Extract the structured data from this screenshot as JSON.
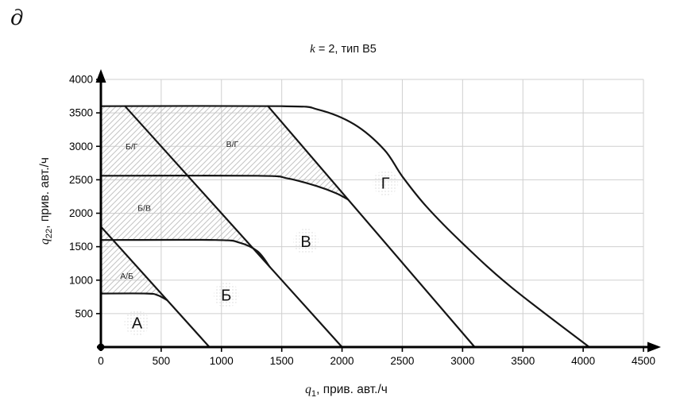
{
  "figure_label": "д",
  "title": {
    "var_italic": "k",
    "suffix": " = 2, тип В5"
  },
  "x_axis_title": {
    "var_italic": "q",
    "sub": "1",
    "suffix": ", прив. авт./ч"
  },
  "y_axis_title": {
    "var_italic": "q",
    "sub": "22",
    "suffix": ", прив. авт./ч"
  },
  "chart_data": {
    "type": "line",
    "title": "k = 2, тип В5",
    "xlabel": "q1, прив. авт./ч",
    "ylabel": "q22, прив. авт./ч",
    "xlim": [
      0,
      4500
    ],
    "ylim": [
      0,
      4000
    ],
    "x_ticks": [
      0,
      500,
      1000,
      1500,
      2000,
      2500,
      3000,
      3500,
      4000,
      4500
    ],
    "y_ticks": [
      500,
      1000,
      1500,
      2000,
      2500,
      3000,
      3500,
      4000
    ],
    "grid": true,
    "legend": "none",
    "curves": [
      {
        "name": "curve-A-boundary",
        "points": [
          [
            0,
            800
          ],
          [
            380,
            800
          ],
          [
            470,
            775
          ],
          [
            550,
            700
          ]
        ]
      },
      {
        "name": "diagonal-1",
        "points": [
          [
            0,
            1800
          ],
          [
            900,
            0
          ]
        ]
      },
      {
        "name": "curve-B-boundary",
        "points": [
          [
            0,
            1600
          ],
          [
            950,
            1600
          ],
          [
            1150,
            1560
          ],
          [
            1300,
            1430
          ],
          [
            1400,
            1200
          ]
        ]
      },
      {
        "name": "diagonal-2",
        "points": [
          [
            200,
            3600
          ],
          [
            2000,
            0
          ]
        ]
      },
      {
        "name": "curve-V-boundary",
        "points": [
          [
            0,
            2560
          ],
          [
            1300,
            2560
          ],
          [
            1550,
            2520
          ],
          [
            1800,
            2400
          ],
          [
            1950,
            2300
          ],
          [
            2050,
            2205
          ]
        ]
      },
      {
        "name": "diagonal-3",
        "points": [
          [
            1386,
            3600
          ],
          [
            3100,
            0
          ]
        ]
      },
      {
        "name": "curve-G-boundary",
        "points": [
          [
            0,
            3600
          ],
          [
            1500,
            3600
          ],
          [
            1800,
            3550
          ],
          [
            2100,
            3330
          ],
          [
            2350,
            2950
          ],
          [
            2500,
            2550
          ],
          [
            2700,
            2100
          ],
          [
            3000,
            1550
          ],
          [
            3400,
            900
          ],
          [
            4050,
            0
          ]
        ]
      }
    ],
    "hatched_regions": [
      {
        "name": "region-A-B",
        "label": "А/Б",
        "label_xy": [
          215,
          1060
        ],
        "points": [
          [
            0,
            800
          ],
          [
            380,
            800
          ],
          [
            470,
            775
          ],
          [
            550,
            700
          ],
          [
            0,
            1800
          ]
        ]
      },
      {
        "name": "region-B-V",
        "label": "Б/В",
        "label_xy": [
          360,
          2080
        ],
        "points": [
          [
            0,
            1600
          ],
          [
            950,
            1600
          ],
          [
            1150,
            1560
          ],
          [
            1300,
            1430
          ],
          [
            1400,
            1200
          ],
          [
            720,
            2560
          ],
          [
            0,
            2560
          ]
        ]
      },
      {
        "name": "region-B-G",
        "label": "Б/Г",
        "label_xy": [
          255,
          3000
        ],
        "points": [
          [
            0,
            2560
          ],
          [
            720,
            2560
          ],
          [
            200,
            3600
          ],
          [
            0,
            3600
          ]
        ]
      },
      {
        "name": "region-V-G",
        "label": "В/Г",
        "label_xy": [
          1090,
          3030
        ],
        "points": [
          [
            720,
            2560
          ],
          [
            1300,
            2560
          ],
          [
            1550,
            2520
          ],
          [
            1800,
            2400
          ],
          [
            1950,
            2300
          ],
          [
            2050,
            2205
          ],
          [
            1386,
            3600
          ],
          [
            200,
            3600
          ]
        ]
      }
    ],
    "zone_labels": [
      {
        "label": "А",
        "xy": [
          300,
          360
        ]
      },
      {
        "label": "Б",
        "xy": [
          1040,
          780
        ]
      },
      {
        "label": "В",
        "xy": [
          1700,
          1580
        ]
      },
      {
        "label": "Г",
        "xy": [
          2360,
          2450
        ]
      }
    ]
  }
}
